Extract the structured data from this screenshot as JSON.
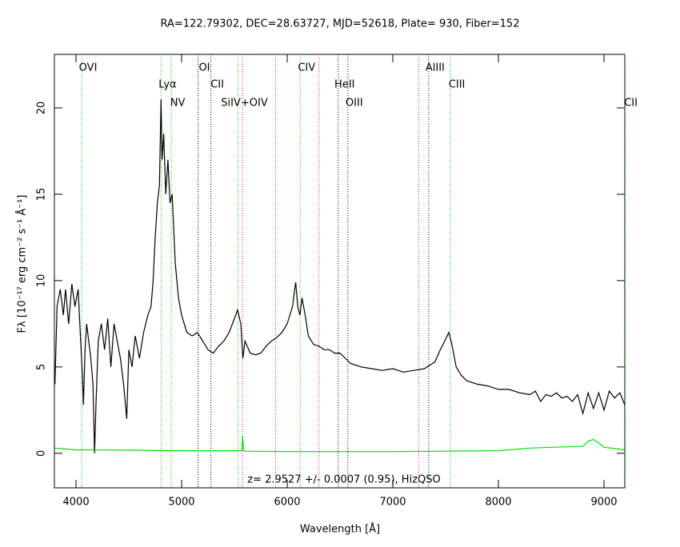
{
  "chart_data": {
    "type": "line",
    "title": "RA=122.79302, DEC=28.63727, MJD=52618, Plate= 930, Fiber=152",
    "x_label": "Wavelength [Å]",
    "y_label": "Fλ [10⁻¹⁷ erg cm⁻² s⁻¹ Å⁻¹]",
    "annotation": "z= 2.9527 +/- 0.0007 (0.95), HizQSO",
    "xlim": [
      3795,
      9197
    ],
    "ylim": [
      -2,
      23.1
    ],
    "xticks": [
      4000,
      5000,
      6000,
      7000,
      8000,
      9000
    ],
    "yticks": [
      0,
      5,
      10,
      15,
      20
    ],
    "series": [
      {
        "color": "#000000",
        "x": [
          3800,
          3820,
          3850,
          3880,
          3900,
          3930,
          3960,
          3990,
          4020,
          4040,
          4060,
          4070,
          4085,
          4100,
          4120,
          4140,
          4160,
          4175,
          4190,
          4210,
          4240,
          4270,
          4300,
          4330,
          4360,
          4390,
          4420,
          4450,
          4480,
          4500,
          4530,
          4560,
          4600,
          4640,
          4680,
          4710,
          4730,
          4750,
          4770,
          4790,
          4805,
          4815,
          4830,
          4850,
          4870,
          4890,
          4910,
          4940,
          4970,
          5000,
          5050,
          5100,
          5150,
          5200,
          5250,
          5300,
          5350,
          5400,
          5450,
          5500,
          5530,
          5560,
          5580,
          5600,
          5650,
          5700,
          5750,
          5800,
          5850,
          5900,
          5950,
          6000,
          6050,
          6080,
          6100,
          6120,
          6140,
          6170,
          6200,
          6250,
          6300,
          6350,
          6400,
          6450,
          6500,
          6550,
          6600,
          6700,
          6800,
          6900,
          7000,
          7100,
          7200,
          7300,
          7400,
          7450,
          7500,
          7530,
          7560,
          7600,
          7650,
          7700,
          7800,
          7900,
          8000,
          8100,
          8200,
          8300,
          8350,
          8400,
          8450,
          8500,
          8550,
          8600,
          8650,
          8700,
          8750,
          8800,
          8850,
          8900,
          8950,
          9000,
          9050,
          9100,
          9150,
          9197
        ],
        "values": [
          4.0,
          8.5,
          9.5,
          8.0,
          9.5,
          7.5,
          9.8,
          8.5,
          9.5,
          7.0,
          4.5,
          2.8,
          6.0,
          7.5,
          6.5,
          5.5,
          4.0,
          0.0,
          3.0,
          6.5,
          7.5,
          6.0,
          7.8,
          5.0,
          7.5,
          6.5,
          5.5,
          4.0,
          2.0,
          6.0,
          5.0,
          6.8,
          5.5,
          7.0,
          8.0,
          8.5,
          10.0,
          12.5,
          14.5,
          15.5,
          20.5,
          17.0,
          18.5,
          15.0,
          17.0,
          14.5,
          15.0,
          11.0,
          9.0,
          8.0,
          7.0,
          6.8,
          7.0,
          6.5,
          6.0,
          5.8,
          6.2,
          6.5,
          7.0,
          7.8,
          8.3,
          7.5,
          5.5,
          6.5,
          5.8,
          5.7,
          5.8,
          6.2,
          6.5,
          6.7,
          7.0,
          7.5,
          8.5,
          9.9,
          8.5,
          8.0,
          9.0,
          8.0,
          6.8,
          6.3,
          6.2,
          6.0,
          6.0,
          5.8,
          5.8,
          5.5,
          5.2,
          5.0,
          4.9,
          4.8,
          4.9,
          4.7,
          4.8,
          4.9,
          5.3,
          6.0,
          6.6,
          7.0,
          6.3,
          5.0,
          4.5,
          4.2,
          4.0,
          3.9,
          3.7,
          3.7,
          3.5,
          3.4,
          3.6,
          3.0,
          3.4,
          3.3,
          3.5,
          3.2,
          3.3,
          3.0,
          3.4,
          2.3,
          3.5,
          2.6,
          3.5,
          2.5,
          3.6,
          3.2,
          3.5,
          2.8
        ]
      },
      {
        "color": "#00e000",
        "x": [
          3800,
          4000,
          4500,
          5000,
          5570,
          5577,
          5590,
          6000,
          7000,
          8000,
          8300,
          8500,
          8800,
          8850,
          8900,
          8950,
          9000,
          9197
        ],
        "values": [
          0.3,
          0.2,
          0.18,
          0.15,
          0.15,
          1.0,
          0.12,
          0.1,
          0.1,
          0.15,
          0.3,
          0.35,
          0.4,
          0.7,
          0.8,
          0.6,
          0.35,
          0.2
        ]
      }
    ],
    "emission_lines": [
      {
        "label": "OVI",
        "wavelength": 4053,
        "color": "#00c000"
      },
      {
        "label": "Lyα",
        "wavelength": 4806,
        "color": "#00c000"
      },
      {
        "label": "NV",
        "wavelength": 4902,
        "color": "#00c000"
      },
      {
        "label": "OI",
        "wavelength": 5155,
        "color": "#000000"
      },
      {
        "label": "CII",
        "wavelength": 5277,
        "color": "#000000"
      },
      {
        "label": "SiIV+OIV",
        "wavelength": 5534,
        "color": "#00c000"
      },
      {
        "label": "CIV",
        "wavelength": 6123,
        "color": "#00c000"
      },
      {
        "label": "HeII",
        "wavelength": 6483,
        "color": "#000000"
      },
      {
        "label": "OIII",
        "wavelength": 6574,
        "color": "#000000"
      },
      {
        "label": "AlIII",
        "wavelength": 7340,
        "color": "#000000"
      },
      {
        "label": "CIII",
        "wavelength": 7546,
        "color": "#00c000"
      },
      {
        "label": "CII",
        "wavelength": 9194,
        "color": "#00c000"
      }
    ],
    "sky_lines": [
      5577,
      5890,
      6300,
      7246
    ],
    "sky_color": "#e000e0"
  }
}
